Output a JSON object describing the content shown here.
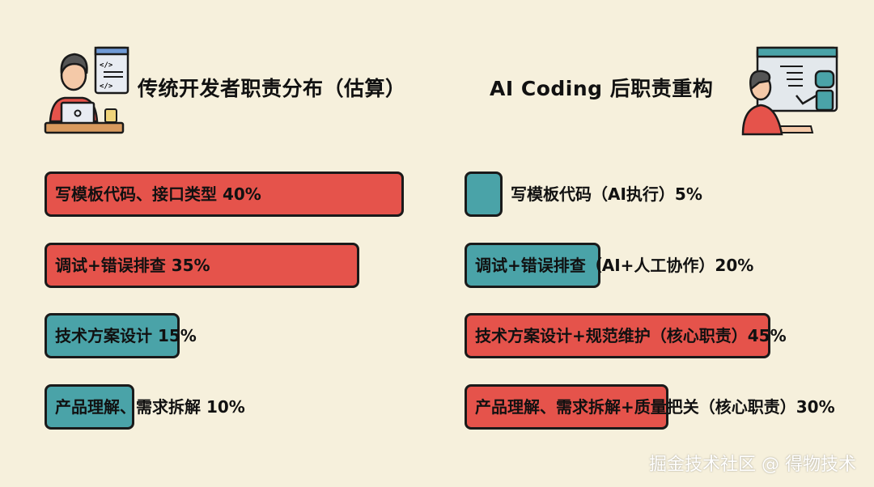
{
  "colors": {
    "background": "#f6f0dc",
    "red": "#e5534b",
    "teal": "#4aa3a8",
    "border": "#1a1a1a"
  },
  "icons": {
    "left": "developer-at-laptop-illustration",
    "right": "developer-with-ai-robot-illustration"
  },
  "chart_data": [
    {
      "type": "bar",
      "orientation": "horizontal",
      "title": "传统开发者职责分布（估算）",
      "categories": [
        "写模板代码、接口类型",
        "调试+错误排查",
        "技术方案设计",
        "产品理解、需求拆解"
      ],
      "values": [
        40,
        35,
        15,
        10
      ],
      "labels": [
        "写模板代码、接口类型 40%",
        "调试+错误排查 35%",
        "技术方案设计 15%",
        "产品理解、需求拆解 10%"
      ],
      "bar_colors": [
        "#e5534b",
        "#e5534b",
        "#4aa3a8",
        "#4aa3a8"
      ],
      "unit": "%"
    },
    {
      "type": "bar",
      "orientation": "horizontal",
      "title": "AI Coding 后职责重构",
      "categories": [
        "写模板代码（AI执行）",
        "调试+错误排查（AI+人工协作）",
        "技术方案设计+规范维护（核心职责）",
        "产品理解、需求拆解+质量把关（核心职责）"
      ],
      "values": [
        5,
        20,
        45,
        30
      ],
      "labels": [
        "写模板代码（AI执行）5%",
        "调试+错误排查（AI+人工协作）20%",
        "技术方案设计+规范维护（核心职责）45%",
        "产品理解、需求拆解+质量把关（核心职责）30%"
      ],
      "bar_colors": [
        "#4aa3a8",
        "#4aa3a8",
        "#e5534b",
        "#e5534b"
      ],
      "unit": "%"
    }
  ],
  "watermark": "掘金技术社区 @ 得物技术"
}
